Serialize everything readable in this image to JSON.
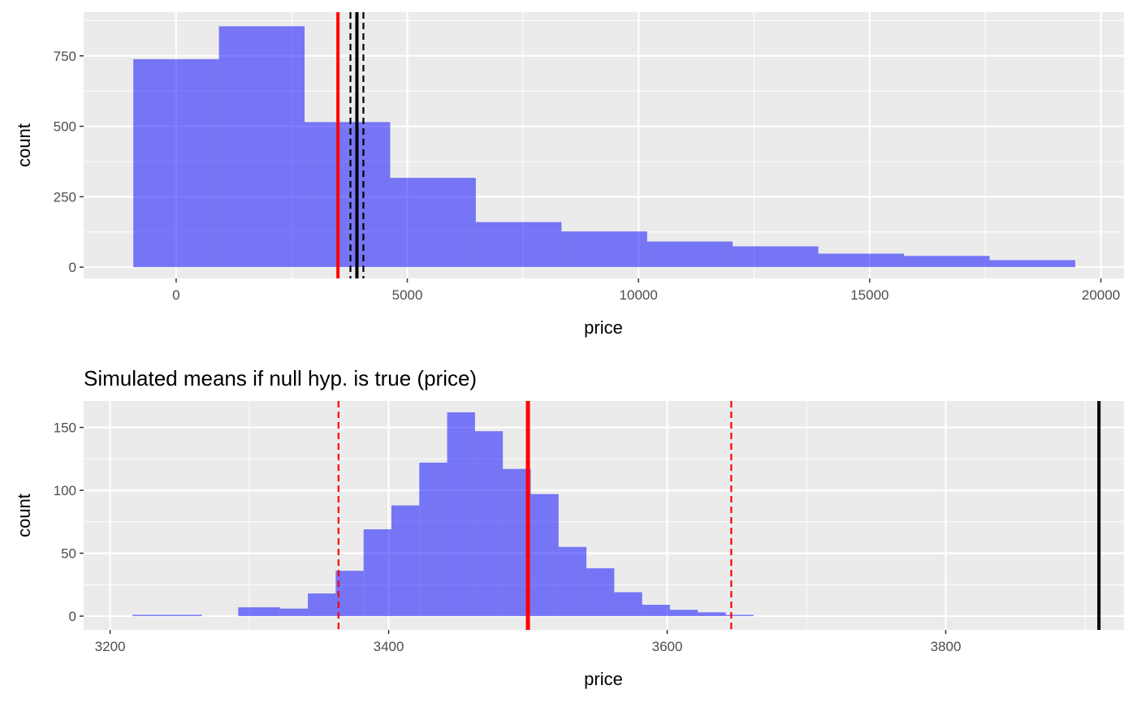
{
  "chart_data": [
    {
      "type": "histogram",
      "title": "",
      "xlabel": "price",
      "ylabel": "count",
      "xlim": [
        -2000,
        20500
      ],
      "ylim": [
        -40,
        905
      ],
      "x_ticks": [
        0,
        5000,
        10000,
        15000,
        20000
      ],
      "y_ticks": [
        0,
        250,
        500,
        750
      ],
      "grid": true,
      "bar_color": "#0000FF",
      "bar_opacity": 0.5,
      "bins": [
        {
          "x0": -926,
          "x1": 926,
          "count": 738
        },
        {
          "x0": 926,
          "x1": 2778,
          "count": 855
        },
        {
          "x0": 2778,
          "x1": 4630,
          "count": 515
        },
        {
          "x0": 4630,
          "x1": 6482,
          "count": 317
        },
        {
          "x0": 6482,
          "x1": 8334,
          "count": 160
        },
        {
          "x0": 8334,
          "x1": 10186,
          "count": 127
        },
        {
          "x0": 10186,
          "x1": 12038,
          "count": 91
        },
        {
          "x0": 12038,
          "x1": 13890,
          "count": 74
        },
        {
          "x0": 13890,
          "x1": 15742,
          "count": 48
        },
        {
          "x0": 15742,
          "x1": 17594,
          "count": 40
        },
        {
          "x0": 17594,
          "x1": 19446,
          "count": 25
        }
      ],
      "vlines": [
        {
          "x": 3500,
          "color": "#FF0000",
          "dashed": false,
          "width": 4
        },
        {
          "x": 3910,
          "color": "#000000",
          "dashed": false,
          "width": 4
        },
        {
          "x": 3770,
          "color": "#000000",
          "dashed": true,
          "width": 2.2
        },
        {
          "x": 4050,
          "color": "#000000",
          "dashed": true,
          "width": 2.2
        }
      ]
    },
    {
      "type": "histogram",
      "title": "Simulated means if null hyp. is true (price)",
      "xlabel": "price",
      "ylabel": "count",
      "xlim": [
        3181,
        3928
      ],
      "ylim": [
        -11,
        171
      ],
      "x_ticks": [
        3200,
        3400,
        3600,
        3800
      ],
      "y_ticks": [
        0,
        50,
        100,
        150
      ],
      "grid": true,
      "bar_color": "#0000FF",
      "bar_opacity": 0.5,
      "bins": [
        {
          "x0": 3216,
          "x1": 3236,
          "count": 1
        },
        {
          "x0": 3236,
          "x1": 3256,
          "count": 1
        },
        {
          "x0": 3256,
          "x1": 3266,
          "count": 1
        },
        {
          "x0": 3292,
          "x1": 3322,
          "count": 7
        },
        {
          "x0": 3322,
          "x1": 3342,
          "count": 6
        },
        {
          "x0": 3342,
          "x1": 3362,
          "count": 18
        },
        {
          "x0": 3362,
          "x1": 3382,
          "count": 36
        },
        {
          "x0": 3382,
          "x1": 3402,
          "count": 69
        },
        {
          "x0": 3402,
          "x1": 3422,
          "count": 88
        },
        {
          "x0": 3422,
          "x1": 3442,
          "count": 122
        },
        {
          "x0": 3442,
          "x1": 3462,
          "count": 162
        },
        {
          "x0": 3462,
          "x1": 3482,
          "count": 147
        },
        {
          "x0": 3482,
          "x1": 3502,
          "count": 117
        },
        {
          "x0": 3502,
          "x1": 3522,
          "count": 97
        },
        {
          "x0": 3522,
          "x1": 3542,
          "count": 55
        },
        {
          "x0": 3542,
          "x1": 3562,
          "count": 38
        },
        {
          "x0": 3562,
          "x1": 3582,
          "count": 19
        },
        {
          "x0": 3582,
          "x1": 3602,
          "count": 9
        },
        {
          "x0": 3602,
          "x1": 3622,
          "count": 5
        },
        {
          "x0": 3622,
          "x1": 3642,
          "count": 3
        },
        {
          "x0": 3642,
          "x1": 3662,
          "count": 1
        }
      ],
      "vlines": [
        {
          "x": 3500,
          "color": "#FF0000",
          "dashed": false,
          "width": 5
        },
        {
          "x": 3364,
          "color": "#FF0000",
          "dashed": true,
          "width": 2.2
        },
        {
          "x": 3646,
          "color": "#FF0000",
          "dashed": true,
          "width": 2.2
        },
        {
          "x": 3910,
          "color": "#000000",
          "dashed": false,
          "width": 4
        }
      ]
    }
  ]
}
